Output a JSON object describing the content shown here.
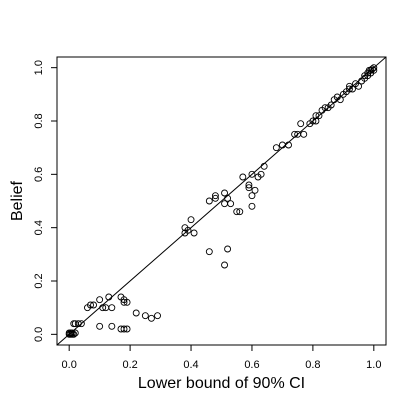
{
  "chart_data": {
    "type": "scatter",
    "title": "",
    "xlabel": "Lower bound of 90% CI",
    "ylabel": "Belief",
    "xlim": [
      -0.04,
      1.04
    ],
    "ylim": [
      -0.04,
      1.04
    ],
    "xticks": [
      0.0,
      0.2,
      0.4,
      0.6,
      0.8,
      1.0
    ],
    "yticks": [
      0.0,
      0.2,
      0.4,
      0.6,
      0.8,
      1.0
    ],
    "xtick_labels": [
      "0.0",
      "0.2",
      "0.4",
      "0.6",
      "0.8",
      "1.0"
    ],
    "ytick_labels": [
      "0.0",
      "0.2",
      "0.4",
      "0.6",
      "0.8",
      "1.0"
    ],
    "grid": false,
    "reference_line": {
      "type": "identity",
      "intercept": 0,
      "slope": 1
    },
    "marker": "open-circle",
    "series": [
      {
        "points": [
          [
            0.0,
            0.0
          ],
          [
            0.0,
            0.005
          ],
          [
            0.005,
            0.0
          ],
          [
            0.01,
            0.005
          ],
          [
            0.015,
            0.0
          ],
          [
            0.02,
            0.005
          ],
          [
            0.01,
            0.0
          ],
          [
            0.005,
            0.005
          ],
          [
            0.02,
            0.04
          ],
          [
            0.03,
            0.04
          ],
          [
            0.04,
            0.04
          ],
          [
            0.015,
            0.04
          ],
          [
            0.06,
            0.1
          ],
          [
            0.07,
            0.11
          ],
          [
            0.08,
            0.11
          ],
          [
            0.1,
            0.13
          ],
          [
            0.11,
            0.1
          ],
          [
            0.12,
            0.1
          ],
          [
            0.14,
            0.1
          ],
          [
            0.13,
            0.14
          ],
          [
            0.17,
            0.14
          ],
          [
            0.18,
            0.13
          ],
          [
            0.19,
            0.12
          ],
          [
            0.18,
            0.12
          ],
          [
            0.1,
            0.03
          ],
          [
            0.14,
            0.03
          ],
          [
            0.18,
            0.02
          ],
          [
            0.17,
            0.02
          ],
          [
            0.19,
            0.02
          ],
          [
            0.22,
            0.08
          ],
          [
            0.25,
            0.07
          ],
          [
            0.27,
            0.06
          ],
          [
            0.29,
            0.07
          ],
          [
            0.38,
            0.4
          ],
          [
            0.39,
            0.39
          ],
          [
            0.4,
            0.43
          ],
          [
            0.41,
            0.38
          ],
          [
            0.38,
            0.38
          ],
          [
            0.46,
            0.31
          ],
          [
            0.51,
            0.26
          ],
          [
            0.52,
            0.32
          ],
          [
            0.46,
            0.5
          ],
          [
            0.48,
            0.51
          ],
          [
            0.48,
            0.52
          ],
          [
            0.51,
            0.49
          ],
          [
            0.52,
            0.51
          ],
          [
            0.53,
            0.49
          ],
          [
            0.55,
            0.46
          ],
          [
            0.56,
            0.46
          ],
          [
            0.57,
            0.59
          ],
          [
            0.59,
            0.56
          ],
          [
            0.59,
            0.55
          ],
          [
            0.6,
            0.6
          ],
          [
            0.6,
            0.52
          ],
          [
            0.61,
            0.54
          ],
          [
            0.62,
            0.59
          ],
          [
            0.63,
            0.6
          ],
          [
            0.64,
            0.63
          ],
          [
            0.51,
            0.53
          ],
          [
            0.6,
            0.48
          ],
          [
            0.68,
            0.7
          ],
          [
            0.7,
            0.71
          ],
          [
            0.72,
            0.71
          ],
          [
            0.74,
            0.75
          ],
          [
            0.75,
            0.75
          ],
          [
            0.76,
            0.79
          ],
          [
            0.77,
            0.75
          ],
          [
            0.79,
            0.79
          ],
          [
            0.8,
            0.8
          ],
          [
            0.81,
            0.82
          ],
          [
            0.81,
            0.8
          ],
          [
            0.82,
            0.82
          ],
          [
            0.83,
            0.84
          ],
          [
            0.84,
            0.85
          ],
          [
            0.85,
            0.85
          ],
          [
            0.86,
            0.86
          ],
          [
            0.87,
            0.88
          ],
          [
            0.88,
            0.89
          ],
          [
            0.89,
            0.88
          ],
          [
            0.9,
            0.9
          ],
          [
            0.91,
            0.91
          ],
          [
            0.92,
            0.92
          ],
          [
            0.92,
            0.93
          ],
          [
            0.93,
            0.92
          ],
          [
            0.94,
            0.94
          ],
          [
            0.95,
            0.93
          ],
          [
            0.96,
            0.95
          ],
          [
            0.97,
            0.97
          ],
          [
            0.97,
            0.96
          ],
          [
            0.98,
            0.98
          ],
          [
            0.98,
            0.97
          ],
          [
            0.99,
            0.99
          ],
          [
            0.99,
            0.98
          ],
          [
            1.0,
            0.99
          ],
          [
            1.0,
            1.0
          ],
          [
            0.995,
            0.995
          ],
          [
            0.985,
            0.99
          ]
        ]
      }
    ]
  }
}
